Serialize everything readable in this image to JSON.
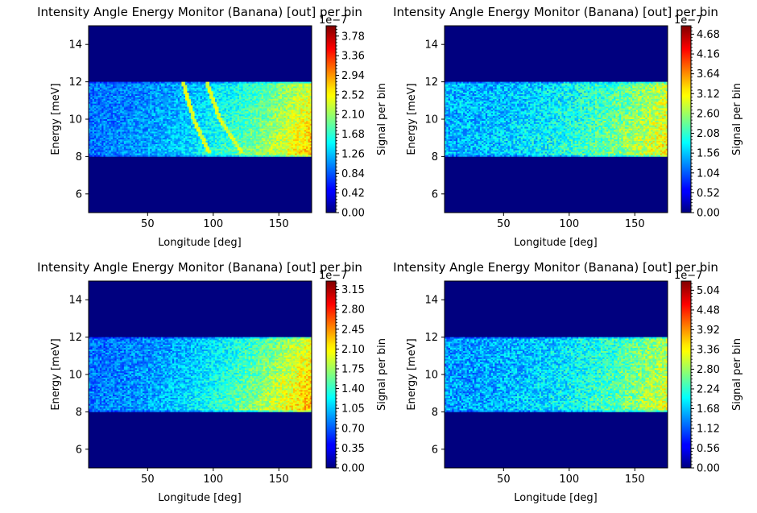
{
  "figure": {
    "panels": [
      {
        "title": "Intensity Angle Energy Monitor (Banana) [out] per bin",
        "xlabel": "Longitude [deg]",
        "ylabel": "Energy [meV]",
        "cbar_label": "Signal per bin",
        "cbar_offset": "1e−7",
        "xticks": [
          "50",
          "100",
          "150"
        ],
        "yticks": [
          "6",
          "8",
          "10",
          "12",
          "14"
        ],
        "cbar_ticks": [
          "0.00",
          "0.42",
          "0.84",
          "1.26",
          "1.68",
          "2.10",
          "2.52",
          "2.94",
          "3.36",
          "3.78"
        ]
      },
      {
        "title": "Intensity Angle Energy Monitor (Banana) [out] per bin",
        "xlabel": "Longitude [deg]",
        "ylabel": "Energy [meV]",
        "cbar_label": "Signal per bin",
        "cbar_offset": "1e−7",
        "xticks": [
          "50",
          "100",
          "150"
        ],
        "yticks": [
          "6",
          "8",
          "10",
          "12",
          "14"
        ],
        "cbar_ticks": [
          "0.00",
          "0.52",
          "1.04",
          "1.56",
          "2.08",
          "2.60",
          "3.12",
          "3.64",
          "4.16",
          "4.68"
        ]
      },
      {
        "title": "Intensity Angle Energy Monitor (Banana) [out] per bin",
        "xlabel": "Longitude [deg]",
        "ylabel": "Energy [meV]",
        "cbar_label": "Signal per bin",
        "cbar_offset": "1e−7",
        "xticks": [
          "50",
          "100",
          "150"
        ],
        "yticks": [
          "6",
          "8",
          "10",
          "12",
          "14"
        ],
        "cbar_ticks": [
          "0.00",
          "0.35",
          "0.70",
          "1.05",
          "1.40",
          "1.75",
          "2.10",
          "2.45",
          "2.80",
          "3.15"
        ]
      },
      {
        "title": "Intensity Angle Energy Monitor (Banana) [out] per bin",
        "xlabel": "Longitude [deg]",
        "ylabel": "Energy [meV]",
        "cbar_label": "Signal per bin",
        "cbar_offset": "1e−7",
        "xticks": [
          "50",
          "100",
          "150"
        ],
        "yticks": [
          "6",
          "8",
          "10",
          "12",
          "14"
        ],
        "cbar_ticks": [
          "0.00",
          "0.56",
          "1.12",
          "1.68",
          "2.24",
          "2.80",
          "3.36",
          "3.92",
          "4.48",
          "5.04"
        ]
      }
    ]
  },
  "chart_data": [
    {
      "type": "heatmap",
      "title": "Intensity Angle Energy Monitor (Banana) [out] per bin",
      "xlabel": "Longitude [deg]",
      "ylabel": "Energy [meV]",
      "colorbar_label": "Signal per bin",
      "colorbar_scale": "1e-7",
      "colormap": "jet",
      "xlim": [
        5,
        175
      ],
      "ylim": [
        5,
        15
      ],
      "signal_band_energy": [
        8,
        12
      ],
      "zlim": [
        0,
        4.0
      ],
      "xticks": [
        50,
        100,
        150
      ],
      "yticks": [
        6,
        8,
        10,
        12,
        14
      ],
      "colorbar_ticks": [
        0.0,
        0.42,
        0.84,
        1.26,
        1.68,
        2.1,
        2.52,
        2.94,
        3.36,
        3.78
      ],
      "features": [
        {
          "shape": "curve",
          "points": [
            [
              77,
              12
            ],
            [
              85,
              10
            ],
            [
              97,
              8.2
            ]
          ]
        },
        {
          "shape": "curve",
          "points": [
            [
              95,
              12
            ],
            [
              105,
              10
            ],
            [
              122,
              8.2
            ]
          ]
        }
      ]
    },
    {
      "type": "heatmap",
      "title": "Intensity Angle Energy Monitor (Banana) [out] per bin",
      "xlabel": "Longitude [deg]",
      "ylabel": "Energy [meV]",
      "colorbar_label": "Signal per bin",
      "colorbar_scale": "1e-7",
      "colormap": "jet",
      "xlim": [
        5,
        175
      ],
      "ylim": [
        5,
        15
      ],
      "signal_band_energy": [
        8,
        12
      ],
      "zlim": [
        0,
        4.9
      ],
      "xticks": [
        50,
        100,
        150
      ],
      "yticks": [
        6,
        8,
        10,
        12,
        14
      ],
      "colorbar_ticks": [
        0.0,
        0.52,
        1.04,
        1.56,
        2.08,
        2.6,
        3.12,
        3.64,
        4.16,
        4.68
      ],
      "features": []
    },
    {
      "type": "heatmap",
      "title": "Intensity Angle Energy Monitor (Banana) [out] per bin",
      "xlabel": "Longitude [deg]",
      "ylabel": "Energy [meV]",
      "colorbar_label": "Signal per bin",
      "colorbar_scale": "1e-7",
      "colormap": "jet",
      "xlim": [
        5,
        175
      ],
      "ylim": [
        5,
        15
      ],
      "signal_band_energy": [
        8,
        12
      ],
      "zlim": [
        0,
        3.3
      ],
      "xticks": [
        50,
        100,
        150
      ],
      "yticks": [
        6,
        8,
        10,
        12,
        14
      ],
      "colorbar_ticks": [
        0.0,
        0.35,
        0.7,
        1.05,
        1.4,
        1.75,
        2.1,
        2.45,
        2.8,
        3.15
      ],
      "features": []
    },
    {
      "type": "heatmap",
      "title": "Intensity Angle Energy Monitor (Banana) [out] per bin",
      "xlabel": "Longitude [deg]",
      "ylabel": "Energy [meV]",
      "colorbar_label": "Signal per bin",
      "colorbar_scale": "1e-7",
      "colormap": "jet",
      "xlim": [
        5,
        175
      ],
      "ylim": [
        5,
        15
      ],
      "signal_band_energy": [
        8,
        12
      ],
      "zlim": [
        0,
        5.3
      ],
      "xticks": [
        50,
        100,
        150
      ],
      "yticks": [
        6,
        8,
        10,
        12,
        14
      ],
      "colorbar_ticks": [
        0.0,
        0.56,
        1.12,
        1.68,
        2.24,
        2.8,
        3.36,
        3.92,
        4.48,
        5.04
      ],
      "features": []
    }
  ]
}
